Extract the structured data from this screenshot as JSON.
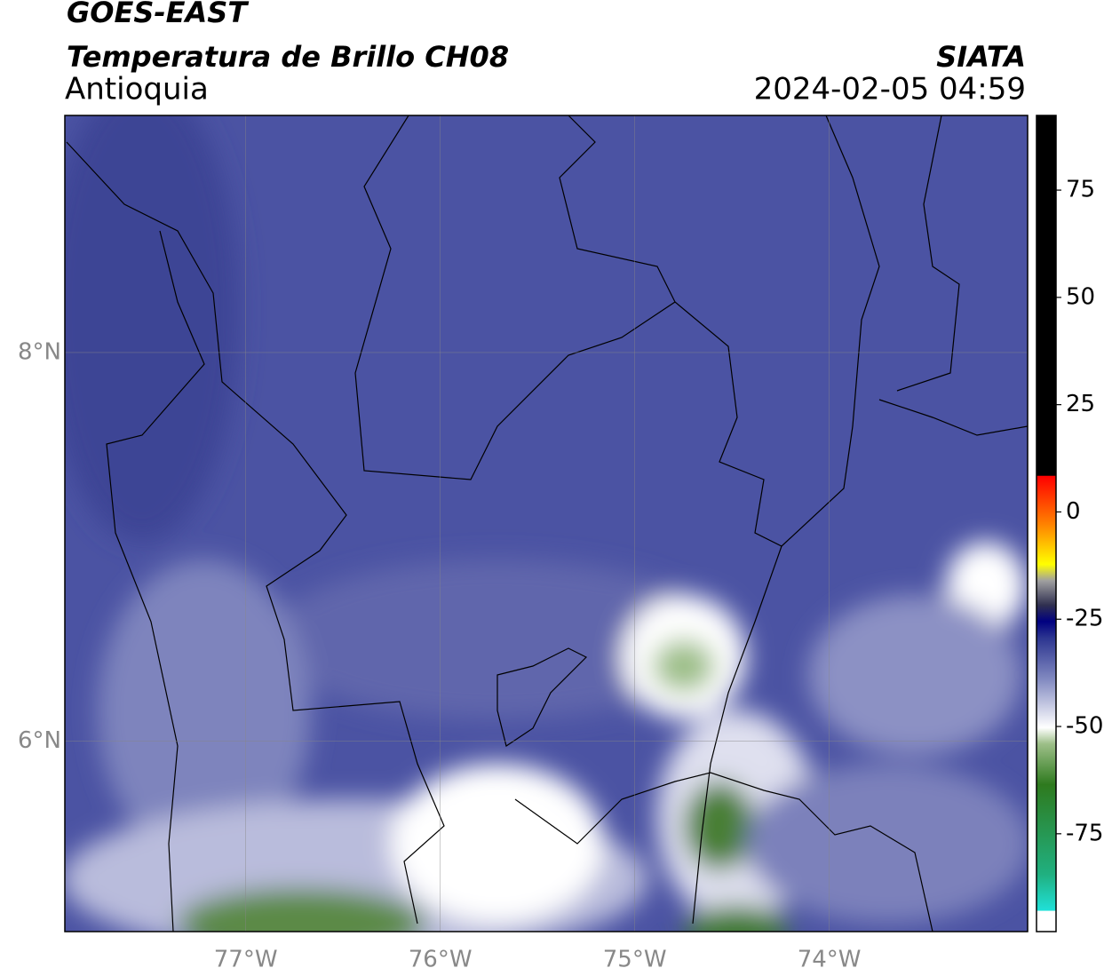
{
  "header": {
    "title": "GOES-EAST",
    "subtitle": "Temperatura de Brillo CH08",
    "region": "Antioquia",
    "source": "SIATA",
    "timestamp": "2024-02-05 04:59"
  },
  "map": {
    "xlim": [
      -77.93,
      -72.98
    ],
    "ylim": [
      5.02,
      9.22
    ],
    "xticks": [
      {
        "value": -77,
        "label": "77°W"
      },
      {
        "value": -76,
        "label": "76°W"
      },
      {
        "value": -75,
        "label": "75°W"
      },
      {
        "value": -74,
        "label": "74°W"
      }
    ],
    "yticks": [
      {
        "value": 8,
        "label": "8°N"
      },
      {
        "value": 6,
        "label": "6°N"
      }
    ]
  },
  "colorbar": {
    "lim": [
      -97.8,
      92.4
    ],
    "ticks": [
      75,
      50,
      25,
      0,
      -25,
      -50,
      -75
    ]
  }
}
